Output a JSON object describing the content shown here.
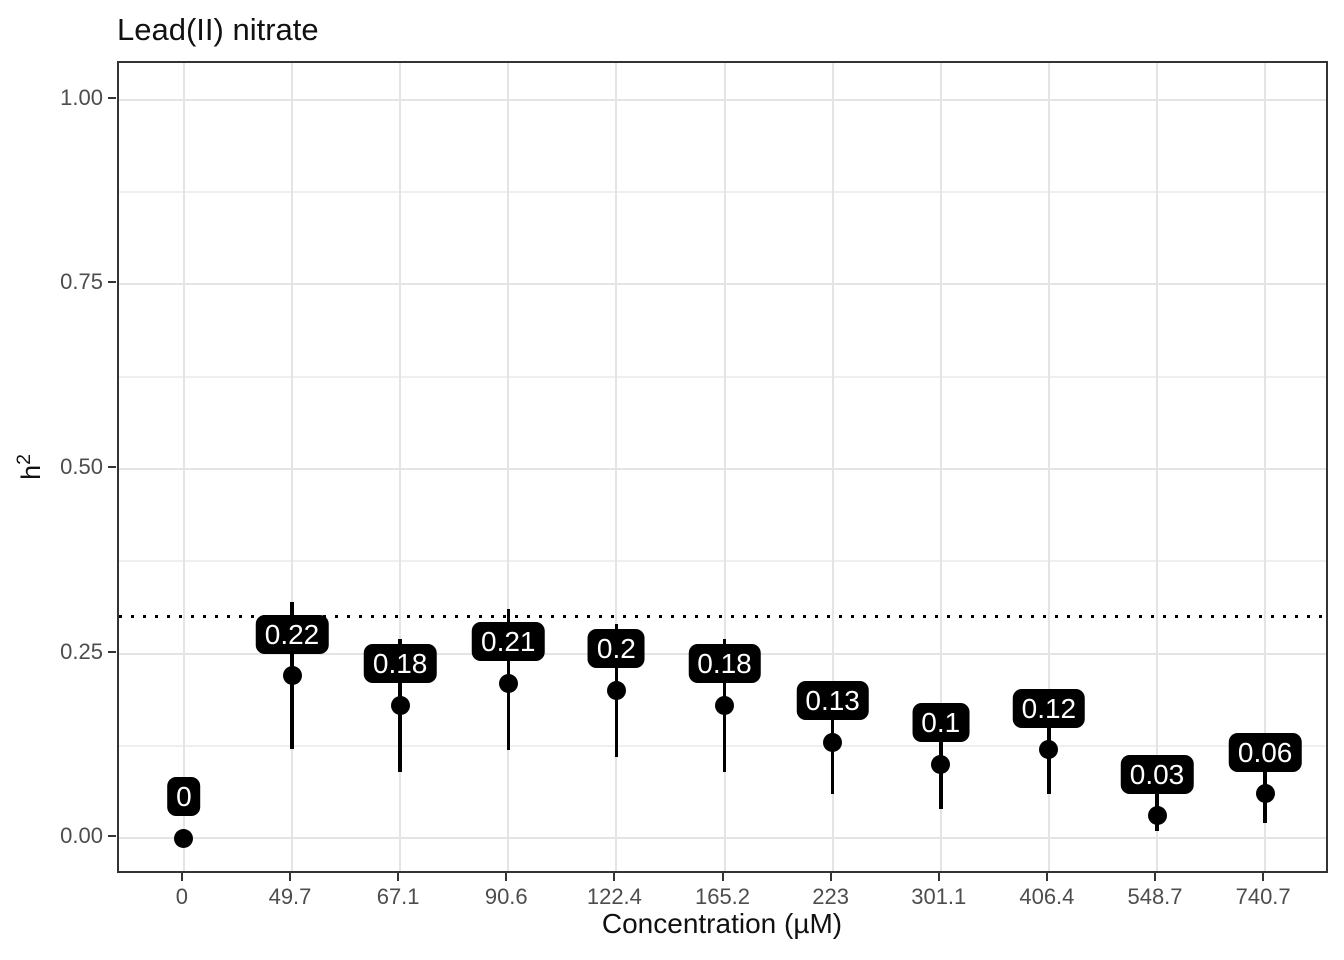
{
  "title": "Lead(II) nitrate",
  "colors": {
    "point": "#000000",
    "errorbar": "#000000",
    "label_background": "#000000",
    "label_text": "#ffffff",
    "panel_border": "#333333",
    "grid_major": "#E4E4E4",
    "grid_minor": "#EFEFEF",
    "tick_mark": "#333333",
    "axis_text": "#4D4D4D",
    "reference_line": "#000000"
  },
  "chart_data": {
    "type": "scatter",
    "subtype": "pointrange",
    "title": "Lead(II) nitrate",
    "xlabel": "Concentration (µM)",
    "ylabel": "h²",
    "ylabel_base": "h",
    "ylabel_sup": "2",
    "x_categories": [
      "0",
      "49.7",
      "67.1",
      "90.6",
      "122.4",
      "165.2",
      "223",
      "301.1",
      "406.4",
      "548.7",
      "740.7"
    ],
    "y_tick_labels": [
      "0.00",
      "0.25",
      "0.50",
      "0.75",
      "1.00"
    ],
    "y_tick_values": [
      0,
      0.25,
      0.5,
      0.75,
      1.0
    ],
    "ylim": [
      -0.05,
      1.05
    ],
    "grid": true,
    "legend": false,
    "reference_line": {
      "y": 0.3,
      "style": "dotted"
    },
    "points": [
      {
        "category": "0",
        "label": "0",
        "estimate": 0,
        "lower": 0,
        "upper": 0
      },
      {
        "category": "49.7",
        "label": "0.22",
        "estimate": 0.22,
        "lower": 0.12,
        "upper": 0.32
      },
      {
        "category": "67.1",
        "label": "0.18",
        "estimate": 0.18,
        "lower": 0.09,
        "upper": 0.27
      },
      {
        "category": "90.6",
        "label": "0.21",
        "estimate": 0.21,
        "lower": 0.12,
        "upper": 0.31
      },
      {
        "category": "122.4",
        "label": "0.2",
        "estimate": 0.2,
        "lower": 0.11,
        "upper": 0.29
      },
      {
        "category": "165.2",
        "label": "0.18",
        "estimate": 0.18,
        "lower": 0.09,
        "upper": 0.27
      },
      {
        "category": "223",
        "label": "0.13",
        "estimate": 0.13,
        "lower": 0.06,
        "upper": 0.2
      },
      {
        "category": "301.1",
        "label": "0.1",
        "estimate": 0.1,
        "lower": 0.04,
        "upper": 0.16
      },
      {
        "category": "406.4",
        "label": "0.12",
        "estimate": 0.12,
        "lower": 0.06,
        "upper": 0.19
      },
      {
        "category": "548.7",
        "label": "0.03",
        "estimate": 0.03,
        "lower": 0.01,
        "upper": 0.08
      },
      {
        "category": "740.7",
        "label": "0.06",
        "estimate": 0.06,
        "lower": 0.02,
        "upper": 0.11
      }
    ]
  }
}
